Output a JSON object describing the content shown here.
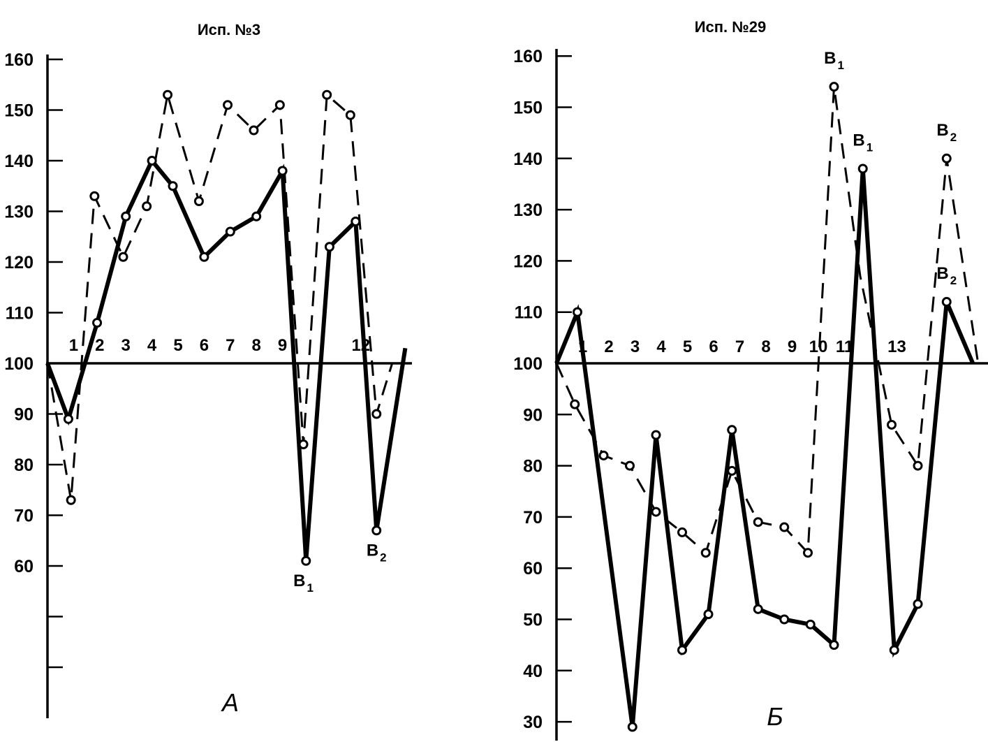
{
  "chart_data": [
    {
      "type": "line",
      "title": "Исп. №3",
      "panel_label": "А",
      "ylim": [
        30,
        160
      ],
      "yticks": [
        60,
        70,
        80,
        90,
        100,
        110,
        120,
        130,
        140,
        150,
        160
      ],
      "x_labels": [
        {
          "label": "1",
          "x": 1
        },
        {
          "label": "2",
          "x": 2
        },
        {
          "label": "3",
          "x": 3
        },
        {
          "label": "4",
          "x": 4
        },
        {
          "label": "5",
          "x": 5
        },
        {
          "label": "6",
          "x": 6
        },
        {
          "label": "7",
          "x": 7
        },
        {
          "label": "8",
          "x": 8
        },
        {
          "label": "9",
          "x": 9
        },
        {
          "label": "12",
          "x": 12
        }
      ],
      "series": [
        {
          "style": "solid",
          "points": [
            [
              0,
              100
            ],
            [
              0.8,
              89
            ],
            [
              1.9,
              108
            ],
            [
              3.0,
              129
            ],
            [
              4.0,
              140
            ],
            [
              4.8,
              135
            ],
            [
              6.0,
              121
            ],
            [
              7.0,
              126
            ],
            [
              8.0,
              129
            ],
            [
              9.0,
              138
            ],
            [
              9.9,
              61
            ],
            [
              10.8,
              123
            ],
            [
              11.8,
              128
            ],
            [
              12.6,
              67
            ],
            [
              13.7,
              103
            ]
          ],
          "markers": [
            [
              0.8,
              89
            ],
            [
              1.9,
              108
            ],
            [
              3.0,
              129
            ],
            [
              4.0,
              140
            ],
            [
              4.8,
              135
            ],
            [
              6.0,
              121
            ],
            [
              7.0,
              126
            ],
            [
              8.0,
              129
            ],
            [
              9.0,
              138
            ],
            [
              9.9,
              61
            ],
            [
              10.8,
              123
            ],
            [
              11.8,
              128
            ],
            [
              12.6,
              67
            ]
          ]
        },
        {
          "style": "dashed",
          "points": [
            [
              0,
              100
            ],
            [
              0.9,
              73
            ],
            [
              1.8,
              133
            ],
            [
              2.9,
              121
            ],
            [
              3.8,
              131
            ],
            [
              4.6,
              153
            ],
            [
              5.8,
              132
            ],
            [
              6.9,
              151
            ],
            [
              7.9,
              146
            ],
            [
              8.9,
              151
            ],
            [
              9.8,
              84
            ],
            [
              10.7,
              153
            ],
            [
              11.6,
              149
            ],
            [
              12.6,
              90
            ],
            [
              13.2,
              100
            ]
          ],
          "markers": [
            [
              0.9,
              73
            ],
            [
              1.8,
              133
            ],
            [
              2.9,
              121
            ],
            [
              3.8,
              131
            ],
            [
              4.6,
              153
            ],
            [
              5.8,
              132
            ],
            [
              6.9,
              151
            ],
            [
              7.9,
              146
            ],
            [
              8.9,
              151
            ],
            [
              9.8,
              84
            ],
            [
              10.7,
              153
            ],
            [
              11.6,
              149
            ],
            [
              12.6,
              90
            ]
          ]
        }
      ],
      "annotations": [
        {
          "text": "B",
          "sub": "1",
          "x": 9.8,
          "y": 56
        },
        {
          "text": "B",
          "sub": "2",
          "x": 12.6,
          "y": 62
        }
      ]
    },
    {
      "type": "line",
      "title": "Исп. №29",
      "panel_label": "Б",
      "ylim": [
        30,
        160
      ],
      "yticks": [
        30,
        40,
        50,
        60,
        70,
        80,
        90,
        100,
        110,
        120,
        130,
        140,
        150,
        160
      ],
      "x_labels": [
        {
          "label": "1",
          "x": 1
        },
        {
          "label": "2",
          "x": 2
        },
        {
          "label": "3",
          "x": 3
        },
        {
          "label": "4",
          "x": 4
        },
        {
          "label": "5",
          "x": 5
        },
        {
          "label": "6",
          "x": 6
        },
        {
          "label": "7",
          "x": 7
        },
        {
          "label": "8",
          "x": 8
        },
        {
          "label": "9",
          "x": 9
        },
        {
          "label": "10",
          "x": 10
        },
        {
          "label": "11",
          "x": 11
        },
        {
          "label": "13",
          "x": 13
        }
      ],
      "series": [
        {
          "style": "solid",
          "points": [
            [
              0,
              100
            ],
            [
              0.8,
              110
            ],
            [
              2.9,
              29
            ],
            [
              3.8,
              86
            ],
            [
              4.8,
              44
            ],
            [
              5.8,
              51
            ],
            [
              6.7,
              87
            ],
            [
              7.7,
              52
            ],
            [
              8.7,
              50
            ],
            [
              9.7,
              49
            ],
            [
              10.6,
              45
            ],
            [
              11.7,
              138
            ],
            [
              12.9,
              44
            ],
            [
              13.8,
              53
            ],
            [
              14.9,
              112
            ],
            [
              15.9,
              100
            ]
          ],
          "markers": [
            [
              0.8,
              110
            ],
            [
              2.9,
              29
            ],
            [
              3.8,
              86
            ],
            [
              4.8,
              44
            ],
            [
              5.8,
              51
            ],
            [
              6.7,
              87
            ],
            [
              7.7,
              52
            ],
            [
              8.7,
              50
            ],
            [
              9.7,
              49
            ],
            [
              10.6,
              45
            ],
            [
              11.7,
              138
            ],
            [
              12.9,
              44
            ],
            [
              13.8,
              53
            ],
            [
              14.9,
              112
            ]
          ]
        },
        {
          "style": "dashed",
          "points": [
            [
              0,
              100
            ],
            [
              0.7,
              92
            ],
            [
              1.8,
              82
            ],
            [
              2.8,
              80
            ],
            [
              3.8,
              71
            ],
            [
              4.8,
              67
            ],
            [
              5.7,
              63
            ],
            [
              6.7,
              79
            ],
            [
              7.7,
              69
            ],
            [
              8.7,
              68
            ],
            [
              9.6,
              63
            ],
            [
              10.6,
              154
            ],
            [
              11.6,
              117
            ],
            [
              12.8,
              88
            ],
            [
              13.8,
              80
            ],
            [
              14.9,
              140
            ],
            [
              16.1,
              100
            ]
          ],
          "markers": [
            [
              0.7,
              92
            ],
            [
              1.8,
              82
            ],
            [
              2.8,
              80
            ],
            [
              3.8,
              71
            ],
            [
              4.8,
              67
            ],
            [
              5.7,
              63
            ],
            [
              6.7,
              79
            ],
            [
              7.7,
              69
            ],
            [
              8.7,
              68
            ],
            [
              9.6,
              63
            ],
            [
              10.6,
              154
            ],
            [
              12.8,
              88
            ],
            [
              13.8,
              80
            ],
            [
              14.9,
              140
            ]
          ]
        }
      ],
      "annotations": [
        {
          "text": "B",
          "sub": "1",
          "x": 10.6,
          "y": 158.5
        },
        {
          "text": "B",
          "sub": "1",
          "x": 11.7,
          "y": 142.5
        },
        {
          "text": "B",
          "sub": "2",
          "x": 14.9,
          "y": 144.5
        },
        {
          "text": "B",
          "sub": "2",
          "x": 14.9,
          "y": 116.5
        }
      ]
    }
  ]
}
